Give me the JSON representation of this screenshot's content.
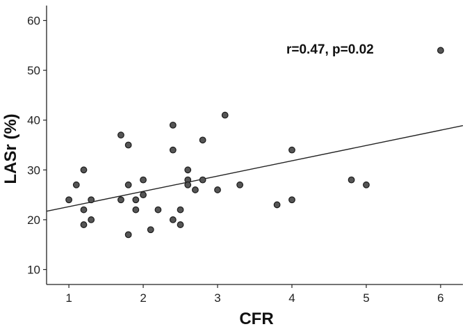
{
  "chart_data": {
    "type": "scatter",
    "title": "",
    "xlabel": "CFR",
    "ylabel": "LASr (%)",
    "xlim": [
      0.7,
      6.3
    ],
    "ylim": [
      7,
      63
    ],
    "xticks": [
      1,
      2,
      3,
      4,
      5,
      6
    ],
    "yticks": [
      10,
      20,
      30,
      40,
      50,
      60
    ],
    "xtick_labels": [
      "1",
      "2",
      "3",
      "4",
      "5",
      "6"
    ],
    "ytick_labels": [
      "10",
      "20",
      "30",
      "40",
      "50",
      "60"
    ],
    "annotation": "r=0.47, p=0.02",
    "grid": false,
    "colors": {
      "point_fill": "#555555",
      "point_stroke": "#1a1a1a",
      "line": "#222222",
      "axis": "#222222"
    },
    "points": [
      {
        "x": 1.0,
        "y": 24
      },
      {
        "x": 1.1,
        "y": 27
      },
      {
        "x": 1.2,
        "y": 30
      },
      {
        "x": 1.2,
        "y": 22
      },
      {
        "x": 1.2,
        "y": 19
      },
      {
        "x": 1.3,
        "y": 24
      },
      {
        "x": 1.3,
        "y": 20
      },
      {
        "x": 1.7,
        "y": 37
      },
      {
        "x": 1.7,
        "y": 24
      },
      {
        "x": 1.8,
        "y": 35
      },
      {
        "x": 1.8,
        "y": 27
      },
      {
        "x": 1.8,
        "y": 17
      },
      {
        "x": 1.9,
        "y": 24
      },
      {
        "x": 1.9,
        "y": 22
      },
      {
        "x": 2.0,
        "y": 28
      },
      {
        "x": 2.0,
        "y": 25
      },
      {
        "x": 2.1,
        "y": 18
      },
      {
        "x": 2.2,
        "y": 22
      },
      {
        "x": 2.4,
        "y": 39
      },
      {
        "x": 2.4,
        "y": 34
      },
      {
        "x": 2.4,
        "y": 20
      },
      {
        "x": 2.5,
        "y": 22
      },
      {
        "x": 2.5,
        "y": 19
      },
      {
        "x": 2.6,
        "y": 30
      },
      {
        "x": 2.6,
        "y": 28
      },
      {
        "x": 2.6,
        "y": 27
      },
      {
        "x": 2.7,
        "y": 26
      },
      {
        "x": 2.8,
        "y": 36
      },
      {
        "x": 2.8,
        "y": 28
      },
      {
        "x": 3.0,
        "y": 26
      },
      {
        "x": 3.1,
        "y": 41
      },
      {
        "x": 3.3,
        "y": 27
      },
      {
        "x": 3.8,
        "y": 23
      },
      {
        "x": 4.0,
        "y": 34
      },
      {
        "x": 4.0,
        "y": 24
      },
      {
        "x": 4.8,
        "y": 28
      },
      {
        "x": 5.0,
        "y": 27
      },
      {
        "x": 6.0,
        "y": 54
      }
    ],
    "fit_line": {
      "x": [
        0.7,
        6.3
      ],
      "y": [
        21.7,
        38.9
      ]
    }
  }
}
